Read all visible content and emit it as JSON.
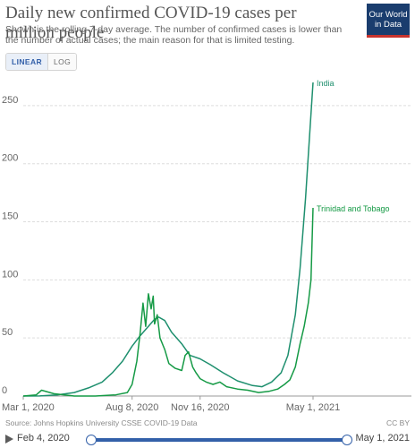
{
  "title": "Daily new confirmed COVID-19 cases per million people",
  "subtitle": "Shown is the rolling 7-day average. The number of confirmed cases is lower than the number of actual cases; the main reason for that is limited testing.",
  "logo": {
    "line1": "Our World",
    "line2": "in Data"
  },
  "scale_toggle": {
    "linear": "LINEAR",
    "log": "LOG",
    "selected": "linear"
  },
  "source": "Source: Johns Hopkins University CSSE COVID-19 Data",
  "license": "CC BY",
  "timeline": {
    "start_label": "Feb 4, 2020",
    "end_label": "May 1, 2021"
  },
  "colors": {
    "india": "#1e8f6e",
    "trinidad": "#159a45",
    "grid": "#dddddd",
    "axis": "#9a9a9a"
  },
  "chart_data": {
    "type": "line",
    "title": "Daily new confirmed COVID-19 cases per million people",
    "xlabel": "",
    "ylabel": "",
    "ylim": [
      0,
      270
    ],
    "yticks": [
      0,
      50,
      100,
      150,
      200,
      250
    ],
    "xticks": [
      "Mar 1, 2020",
      "Aug 8, 2020",
      "Nov 16, 2020",
      "May 1, 2021"
    ],
    "xrange": [
      "2020-03-01",
      "2021-05-01"
    ],
    "grid": true,
    "series": [
      {
        "name": "India",
        "x": [
          "2020-03-01",
          "2020-03-25",
          "2020-04-20",
          "2020-05-15",
          "2020-06-05",
          "2020-06-25",
          "2020-07-10",
          "2020-07-25",
          "2020-08-08",
          "2020-08-20",
          "2020-09-01",
          "2020-09-10",
          "2020-09-16",
          "2020-09-25",
          "2020-10-05",
          "2020-10-20",
          "2020-11-01",
          "2020-11-16",
          "2020-12-01",
          "2020-12-20",
          "2021-01-10",
          "2021-02-01",
          "2021-02-15",
          "2021-03-01",
          "2021-03-15",
          "2021-03-25",
          "2021-04-05",
          "2021-04-12",
          "2021-04-20",
          "2021-04-26",
          "2021-05-01"
        ],
        "values": [
          0,
          0.1,
          1,
          3,
          7,
          12,
          20,
          30,
          43,
          52,
          60,
          66,
          68,
          65,
          55,
          45,
          35,
          32,
          27,
          20,
          13,
          9,
          8,
          12,
          20,
          35,
          70,
          110,
          170,
          225,
          270
        ]
      },
      {
        "name": "Trinidad and Tobago",
        "x": [
          "2020-03-01",
          "2020-03-20",
          "2020-03-28",
          "2020-04-15",
          "2020-05-15",
          "2020-06-15",
          "2020-07-15",
          "2020-08-01",
          "2020-08-08",
          "2020-08-15",
          "2020-08-20",
          "2020-08-24",
          "2020-08-28",
          "2020-09-01",
          "2020-09-05",
          "2020-09-08",
          "2020-09-10",
          "2020-09-14",
          "2020-09-18",
          "2020-09-25",
          "2020-10-01",
          "2020-10-10",
          "2020-10-20",
          "2020-10-25",
          "2020-10-30",
          "2020-11-05",
          "2020-11-10",
          "2020-11-16",
          "2020-11-25",
          "2020-12-05",
          "2020-12-15",
          "2020-12-25",
          "2021-01-10",
          "2021-01-25",
          "2021-02-10",
          "2021-02-25",
          "2021-03-10",
          "2021-03-20",
          "2021-03-28",
          "2021-04-05",
          "2021-04-12",
          "2021-04-18",
          "2021-04-24",
          "2021-04-28",
          "2021-05-01"
        ],
        "values": [
          0,
          1,
          5,
          2,
          0,
          0,
          1,
          3,
          10,
          30,
          55,
          80,
          60,
          88,
          75,
          86,
          62,
          70,
          50,
          40,
          28,
          24,
          22,
          35,
          38,
          25,
          20,
          15,
          12,
          10,
          12,
          8,
          6,
          5,
          3,
          4,
          6,
          10,
          14,
          25,
          45,
          60,
          80,
          100,
          162
        ]
      }
    ]
  }
}
